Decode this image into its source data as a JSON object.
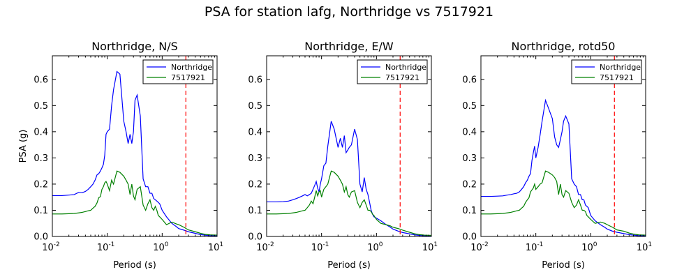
{
  "figure": {
    "suptitle": "PSA for station lafg, Northridge vs 7517921"
  },
  "colors": {
    "observed": "#0000ff",
    "simulated": "#008000",
    "marker": "#ff0000"
  },
  "chart_data": [
    {
      "type": "line",
      "title": "Northridge, N/S",
      "xlabel": "Period (s)",
      "ylabel": "PSA (g)",
      "xscale": "log",
      "xlim": [
        0.01,
        10
      ],
      "ylim": [
        0,
        0.69
      ],
      "yticks": [
        "0.0",
        "0.1",
        "0.2",
        "0.3",
        "0.4",
        "0.5",
        "0.6"
      ],
      "xticks": [
        "10",
        "10",
        "10",
        "10"
      ],
      "xtick_exps": [
        "-2",
        "-1",
        "0",
        "1"
      ],
      "legend_position": "top-right",
      "vline_x": 2.7,
      "x": [
        0.01,
        0.015,
        0.02,
        0.025,
        0.03,
        0.035,
        0.04,
        0.045,
        0.05,
        0.055,
        0.06,
        0.065,
        0.07,
        0.075,
        0.08,
        0.085,
        0.09,
        0.095,
        0.1,
        0.11,
        0.12,
        0.13,
        0.15,
        0.17,
        0.2,
        0.22,
        0.24,
        0.26,
        0.28,
        0.3,
        0.32,
        0.35,
        0.4,
        0.45,
        0.5,
        0.55,
        0.6,
        0.65,
        0.7,
        0.75,
        0.8,
        0.85,
        0.9,
        1.0,
        1.2,
        1.5,
        1.8,
        2.0,
        2.5,
        3.0,
        4.0,
        5.0,
        6.0,
        7.5,
        10.0
      ],
      "series": [
        {
          "name": "Northridge",
          "values": [
            0.156,
            0.156,
            0.158,
            0.16,
            0.168,
            0.167,
            0.172,
            0.18,
            0.19,
            0.2,
            0.215,
            0.235,
            0.24,
            0.25,
            0.262,
            0.275,
            0.31,
            0.39,
            0.4,
            0.41,
            0.5,
            0.56,
            0.63,
            0.62,
            0.44,
            0.4,
            0.355,
            0.39,
            0.355,
            0.4,
            0.52,
            0.54,
            0.46,
            0.22,
            0.19,
            0.19,
            0.165,
            0.165,
            0.145,
            0.14,
            0.135,
            0.13,
            0.125,
            0.1,
            0.075,
            0.05,
            0.038,
            0.03,
            0.024,
            0.018,
            0.012,
            0.007,
            0.005,
            0.003,
            0.002
          ]
        },
        {
          "name": "7517921",
          "values": [
            0.086,
            0.086,
            0.087,
            0.088,
            0.09,
            0.092,
            0.095,
            0.098,
            0.1,
            0.108,
            0.115,
            0.128,
            0.148,
            0.152,
            0.18,
            0.19,
            0.205,
            0.21,
            0.2,
            0.175,
            0.215,
            0.2,
            0.25,
            0.245,
            0.23,
            0.215,
            0.2,
            0.16,
            0.2,
            0.155,
            0.14,
            0.18,
            0.19,
            0.12,
            0.1,
            0.125,
            0.14,
            0.11,
            0.1,
            0.115,
            0.1,
            0.08,
            0.075,
            0.065,
            0.045,
            0.055,
            0.048,
            0.045,
            0.035,
            0.025,
            0.018,
            0.012,
            0.008,
            0.006,
            0.005
          ]
        }
      ]
    },
    {
      "type": "line",
      "title": "Northridge, E/W",
      "xlabel": "Period (s)",
      "ylabel": "",
      "xscale": "log",
      "xlim": [
        0.01,
        10
      ],
      "ylim": [
        0,
        0.69
      ],
      "yticks": [
        "0.0",
        "0.1",
        "0.2",
        "0.3",
        "0.4",
        "0.5",
        "0.6"
      ],
      "xticks": [
        "10",
        "10",
        "10",
        "10"
      ],
      "xtick_exps": [
        "-2",
        "-1",
        "0",
        "1"
      ],
      "legend_position": "top-right",
      "vline_x": 2.7,
      "x": [
        0.01,
        0.015,
        0.02,
        0.025,
        0.03,
        0.035,
        0.04,
        0.045,
        0.05,
        0.055,
        0.06,
        0.065,
        0.07,
        0.075,
        0.08,
        0.085,
        0.09,
        0.095,
        0.1,
        0.11,
        0.12,
        0.13,
        0.15,
        0.17,
        0.2,
        0.22,
        0.24,
        0.26,
        0.28,
        0.3,
        0.32,
        0.35,
        0.4,
        0.45,
        0.5,
        0.55,
        0.6,
        0.65,
        0.7,
        0.75,
        0.8,
        0.85,
        0.9,
        1.0,
        1.2,
        1.5,
        1.8,
        2.0,
        2.5,
        3.0,
        4.0,
        5.0,
        6.0,
        7.5,
        10.0
      ],
      "series": [
        {
          "name": "Northridge",
          "values": [
            0.132,
            0.132,
            0.133,
            0.135,
            0.14,
            0.145,
            0.15,
            0.155,
            0.16,
            0.155,
            0.16,
            0.165,
            0.18,
            0.195,
            0.21,
            0.185,
            0.17,
            0.2,
            0.22,
            0.27,
            0.28,
            0.345,
            0.44,
            0.41,
            0.34,
            0.375,
            0.34,
            0.385,
            0.32,
            0.33,
            0.34,
            0.35,
            0.41,
            0.37,
            0.2,
            0.17,
            0.225,
            0.18,
            0.16,
            0.13,
            0.1,
            0.085,
            0.075,
            0.07,
            0.06,
            0.045,
            0.035,
            0.028,
            0.02,
            0.015,
            0.01,
            0.006,
            0.004,
            0.003,
            0.002
          ]
        },
        {
          "name": "7517921",
          "values": [
            0.086,
            0.086,
            0.087,
            0.088,
            0.09,
            0.092,
            0.095,
            0.098,
            0.1,
            0.11,
            0.12,
            0.135,
            0.125,
            0.15,
            0.175,
            0.155,
            0.17,
            0.175,
            0.15,
            0.18,
            0.19,
            0.2,
            0.25,
            0.245,
            0.23,
            0.215,
            0.2,
            0.17,
            0.19,
            0.16,
            0.15,
            0.17,
            0.175,
            0.13,
            0.11,
            0.13,
            0.14,
            0.12,
            0.1,
            0.1,
            0.095,
            0.085,
            0.08,
            0.065,
            0.05,
            0.045,
            0.04,
            0.035,
            0.03,
            0.024,
            0.016,
            0.01,
            0.007,
            0.005,
            0.004
          ]
        }
      ]
    },
    {
      "type": "line",
      "title": "Northridge, rotd50",
      "xlabel": "Period (s)",
      "ylabel": "",
      "xscale": "log",
      "xlim": [
        0.01,
        10
      ],
      "ylim": [
        0,
        0.69
      ],
      "yticks": [
        "0.0",
        "0.1",
        "0.2",
        "0.3",
        "0.4",
        "0.5",
        "0.6"
      ],
      "xticks": [
        "10",
        "10",
        "10",
        "10"
      ],
      "xtick_exps": [
        "-2",
        "-1",
        "0",
        "1"
      ],
      "legend_position": "top-right",
      "vline_x": 2.7,
      "x": [
        0.01,
        0.015,
        0.02,
        0.025,
        0.03,
        0.035,
        0.04,
        0.045,
        0.05,
        0.055,
        0.06,
        0.065,
        0.07,
        0.075,
        0.08,
        0.085,
        0.09,
        0.095,
        0.1,
        0.11,
        0.12,
        0.13,
        0.15,
        0.17,
        0.2,
        0.22,
        0.24,
        0.26,
        0.28,
        0.3,
        0.32,
        0.35,
        0.4,
        0.45,
        0.5,
        0.55,
        0.6,
        0.65,
        0.7,
        0.75,
        0.8,
        0.85,
        0.9,
        1.0,
        1.2,
        1.5,
        1.8,
        2.0,
        2.5,
        3.0,
        4.0,
        5.0,
        6.0,
        7.5,
        10.0
      ],
      "series": [
        {
          "name": "Northridge",
          "values": [
            0.153,
            0.153,
            0.154,
            0.155,
            0.158,
            0.16,
            0.163,
            0.165,
            0.17,
            0.18,
            0.19,
            0.205,
            0.215,
            0.23,
            0.24,
            0.29,
            0.32,
            0.345,
            0.3,
            0.34,
            0.39,
            0.44,
            0.52,
            0.49,
            0.45,
            0.38,
            0.35,
            0.34,
            0.37,
            0.4,
            0.44,
            0.46,
            0.43,
            0.22,
            0.2,
            0.19,
            0.16,
            0.16,
            0.14,
            0.14,
            0.12,
            0.115,
            0.11,
            0.08,
            0.06,
            0.045,
            0.035,
            0.028,
            0.02,
            0.016,
            0.011,
            0.007,
            0.005,
            0.003,
            0.002
          ]
        },
        {
          "name": "7517921",
          "values": [
            0.086,
            0.086,
            0.087,
            0.088,
            0.09,
            0.092,
            0.095,
            0.098,
            0.1,
            0.108,
            0.115,
            0.13,
            0.14,
            0.148,
            0.17,
            0.178,
            0.185,
            0.2,
            0.18,
            0.19,
            0.2,
            0.205,
            0.25,
            0.245,
            0.235,
            0.225,
            0.21,
            0.16,
            0.2,
            0.16,
            0.15,
            0.175,
            0.165,
            0.13,
            0.11,
            0.12,
            0.14,
            0.12,
            0.1,
            0.1,
            0.095,
            0.08,
            0.075,
            0.065,
            0.05,
            0.055,
            0.05,
            0.045,
            0.035,
            0.025,
            0.02,
            0.013,
            0.009,
            0.006,
            0.005
          ]
        }
      ]
    }
  ]
}
